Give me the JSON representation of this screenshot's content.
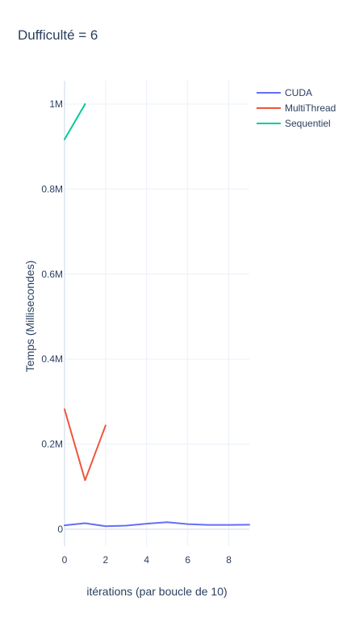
{
  "chart_data": {
    "type": "line",
    "title": "Dufficulté = 6",
    "xlabel": "itérations (par boucle de 10)",
    "ylabel": "Temps (Millisecondes)",
    "xlim": [
      0,
      9
    ],
    "ylim": [
      -40000,
      1055000
    ],
    "x_ticks": [
      0,
      2,
      4,
      6,
      8
    ],
    "x_tick_labels": [
      "0",
      "2",
      "4",
      "6",
      "8"
    ],
    "y_ticks": [
      0,
      200000,
      400000,
      600000,
      800000,
      1000000
    ],
    "y_tick_labels": [
      "0",
      "0.2M",
      "0.4M",
      "0.6M",
      "0.8M",
      "1M"
    ],
    "grid": true,
    "legend_position": "top-right",
    "series": [
      {
        "name": "CUDA",
        "color": "#636efa",
        "x": [
          0,
          1,
          2,
          3,
          4,
          5,
          6,
          7,
          8,
          9
        ],
        "y": [
          9000,
          14000,
          7000,
          8500,
          13000,
          16500,
          12000,
          10000,
          10000,
          10500
        ]
      },
      {
        "name": "MultiThread",
        "color": "#ef553b",
        "x": [
          0,
          1,
          2
        ],
        "y": [
          282000,
          115000,
          244000
        ]
      },
      {
        "name": "Sequentiel",
        "color": "#00cc96",
        "x": [
          0,
          1
        ],
        "y": [
          917000,
          1000000
        ]
      }
    ]
  }
}
